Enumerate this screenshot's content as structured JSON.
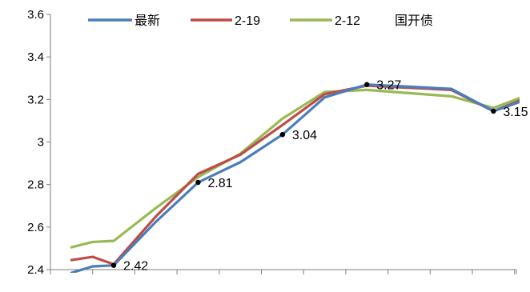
{
  "chart_data": {
    "type": "line",
    "title": "",
    "xlabel": "",
    "ylabel": "",
    "ylim": [
      2.4,
      3.6
    ],
    "yticks": [
      "2.4",
      "2.6",
      "2.8",
      "3",
      "3.2",
      "3.4",
      "3.6"
    ],
    "x": [
      0,
      0.5,
      1,
      2,
      3,
      4,
      5,
      6,
      7,
      8,
      9,
      10,
      11
    ],
    "legend_placement": "top",
    "legend_extra_text": "国开债",
    "grid": false,
    "series": [
      {
        "name": "最新",
        "color": "#4a7ebb",
        "values": [
          2.385,
          2.415,
          2.42,
          2.625,
          2.81,
          2.905,
          3.035,
          3.21,
          3.27,
          3.26,
          3.25,
          3.145,
          3.215
        ]
      },
      {
        "name": "2-19",
        "color": "#be4b48",
        "values": [
          2.445,
          2.46,
          2.425,
          2.65,
          2.85,
          2.94,
          3.08,
          3.225,
          3.265,
          3.255,
          3.245,
          3.145,
          3.225
        ]
      },
      {
        "name": "2-12",
        "color": "#98b954",
        "values": [
          2.505,
          2.53,
          2.535,
          2.69,
          2.835,
          2.945,
          3.11,
          3.235,
          3.245,
          3.23,
          3.215,
          3.16,
          3.235
        ]
      }
    ],
    "annotations": [
      {
        "x": 1,
        "y": 2.42,
        "text": "2.42"
      },
      {
        "x": 3,
        "y": 2.81,
        "text": "2.81"
      },
      {
        "x": 5,
        "y": 3.035,
        "text": "3.04"
      },
      {
        "x": 7,
        "y": 3.27,
        "text": "3.27"
      },
      {
        "x": 10,
        "y": 3.145,
        "text": "3.15"
      }
    ]
  }
}
